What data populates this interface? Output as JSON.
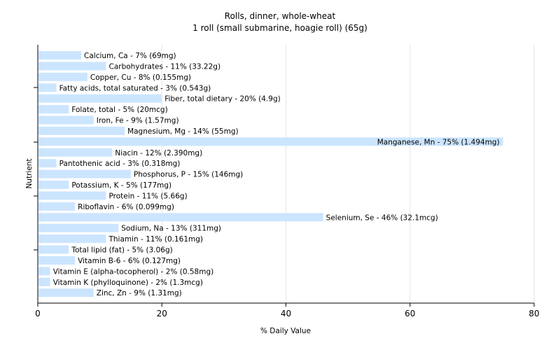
{
  "chart_data": {
    "type": "bar",
    "orientation": "horizontal",
    "title": "Rolls, dinner, whole-wheat",
    "subtitle": "1 roll (small submarine, hoagie roll) (65g)",
    "xlabel": "% Daily Value",
    "ylabel": "Nutrient",
    "xlim": [
      0,
      80
    ],
    "xticks": [
      0,
      20,
      40,
      60,
      80
    ],
    "grid": "vertical",
    "bar_color": "#cce5ff",
    "categories": [
      "Calcium, Ca",
      "Carbohydrates",
      "Copper, Cu",
      "Fatty acids, total saturated",
      "Fiber, total dietary",
      "Folate, total",
      "Iron, Fe",
      "Magnesium, Mg",
      "Manganese, Mn",
      "Niacin",
      "Pantothenic acid",
      "Phosphorus, P",
      "Potassium, K",
      "Protein",
      "Riboflavin",
      "Selenium, Se",
      "Sodium, Na",
      "Thiamin",
      "Total lipid (fat)",
      "Vitamin B-6",
      "Vitamin E (alpha-tocopherol)",
      "Vitamin K (phylloquinone)",
      "Zinc, Zn"
    ],
    "values": [
      7,
      11,
      8,
      3,
      20,
      5,
      9,
      14,
      75,
      12,
      3,
      15,
      5,
      11,
      6,
      46,
      13,
      11,
      5,
      6,
      2,
      2,
      9
    ],
    "labels": [
      "Calcium, Ca - 7% (69mg)",
      "Carbohydrates - 11% (33.22g)",
      "Copper, Cu - 8% (0.155mg)",
      "Fatty acids, total saturated - 3% (0.543g)",
      "Fiber, total dietary - 20% (4.9g)",
      "Folate, total - 5% (20mcg)",
      "Iron, Fe - 9% (1.57mg)",
      "Magnesium, Mg - 14% (55mg)",
      "Manganese, Mn - 75% (1.494mg)",
      "Niacin - 12% (2.390mg)",
      "Pantothenic acid - 3% (0.318mg)",
      "Phosphorus, P - 15% (146mg)",
      "Potassium, K - 5% (177mg)",
      "Protein - 11% (5.66g)",
      "Riboflavin - 6% (0.099mg)",
      "Selenium, Se - 46% (32.1mcg)",
      "Sodium, Na - 13% (311mg)",
      "Thiamin - 11% (0.161mg)",
      "Total lipid (fat) - 5% (3.06g)",
      "Vitamin B-6 - 6% (0.127mg)",
      "Vitamin E (alpha-tocopherol) - 2% (0.58mg)",
      "Vitamin K (phylloquinone) - 2% (1.3mcg)",
      "Zinc, Zn - 9% (1.31mg)"
    ]
  }
}
